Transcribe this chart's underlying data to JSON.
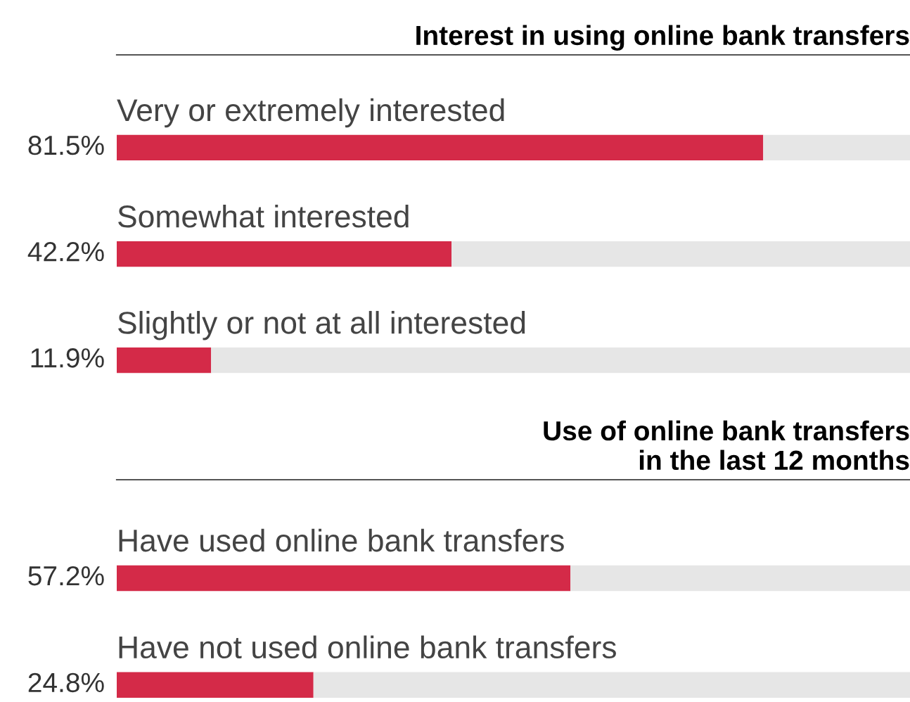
{
  "chart_data": [
    {
      "type": "bar",
      "orientation": "horizontal",
      "stacked": true,
      "title": "Interest in using online bank transfers",
      "categories": [
        "Very or extremely interested",
        "Somewhat interested",
        "Slightly or not at all interested"
      ],
      "xlim": [
        0,
        100
      ],
      "tick_labels": false,
      "series": [
        {
          "color": "#d42a48",
          "values": [
            81.5,
            42.2,
            11.9
          ],
          "value_labels": [
            "81.5%",
            "42.2%",
            "11.9%"
          ]
        },
        {
          "color": "#e6e6e6",
          "values": [
            18.5,
            57.8,
            88.1
          ]
        }
      ]
    },
    {
      "type": "bar",
      "orientation": "horizontal",
      "stacked": true,
      "title": "Use of online bank transfers\nin the last 12 months",
      "categories": [
        "Have used online bank transfers",
        "Have not used online bank transfers"
      ],
      "xlim": [
        0,
        100
      ],
      "tick_labels": false,
      "series": [
        {
          "color": "#d42a48",
          "values": [
            57.2,
            24.8
          ],
          "value_labels": [
            "57.2%",
            "24.8%"
          ]
        },
        {
          "color": "#e6e6e6",
          "values": [
            42.8,
            75.2
          ]
        }
      ]
    }
  ]
}
